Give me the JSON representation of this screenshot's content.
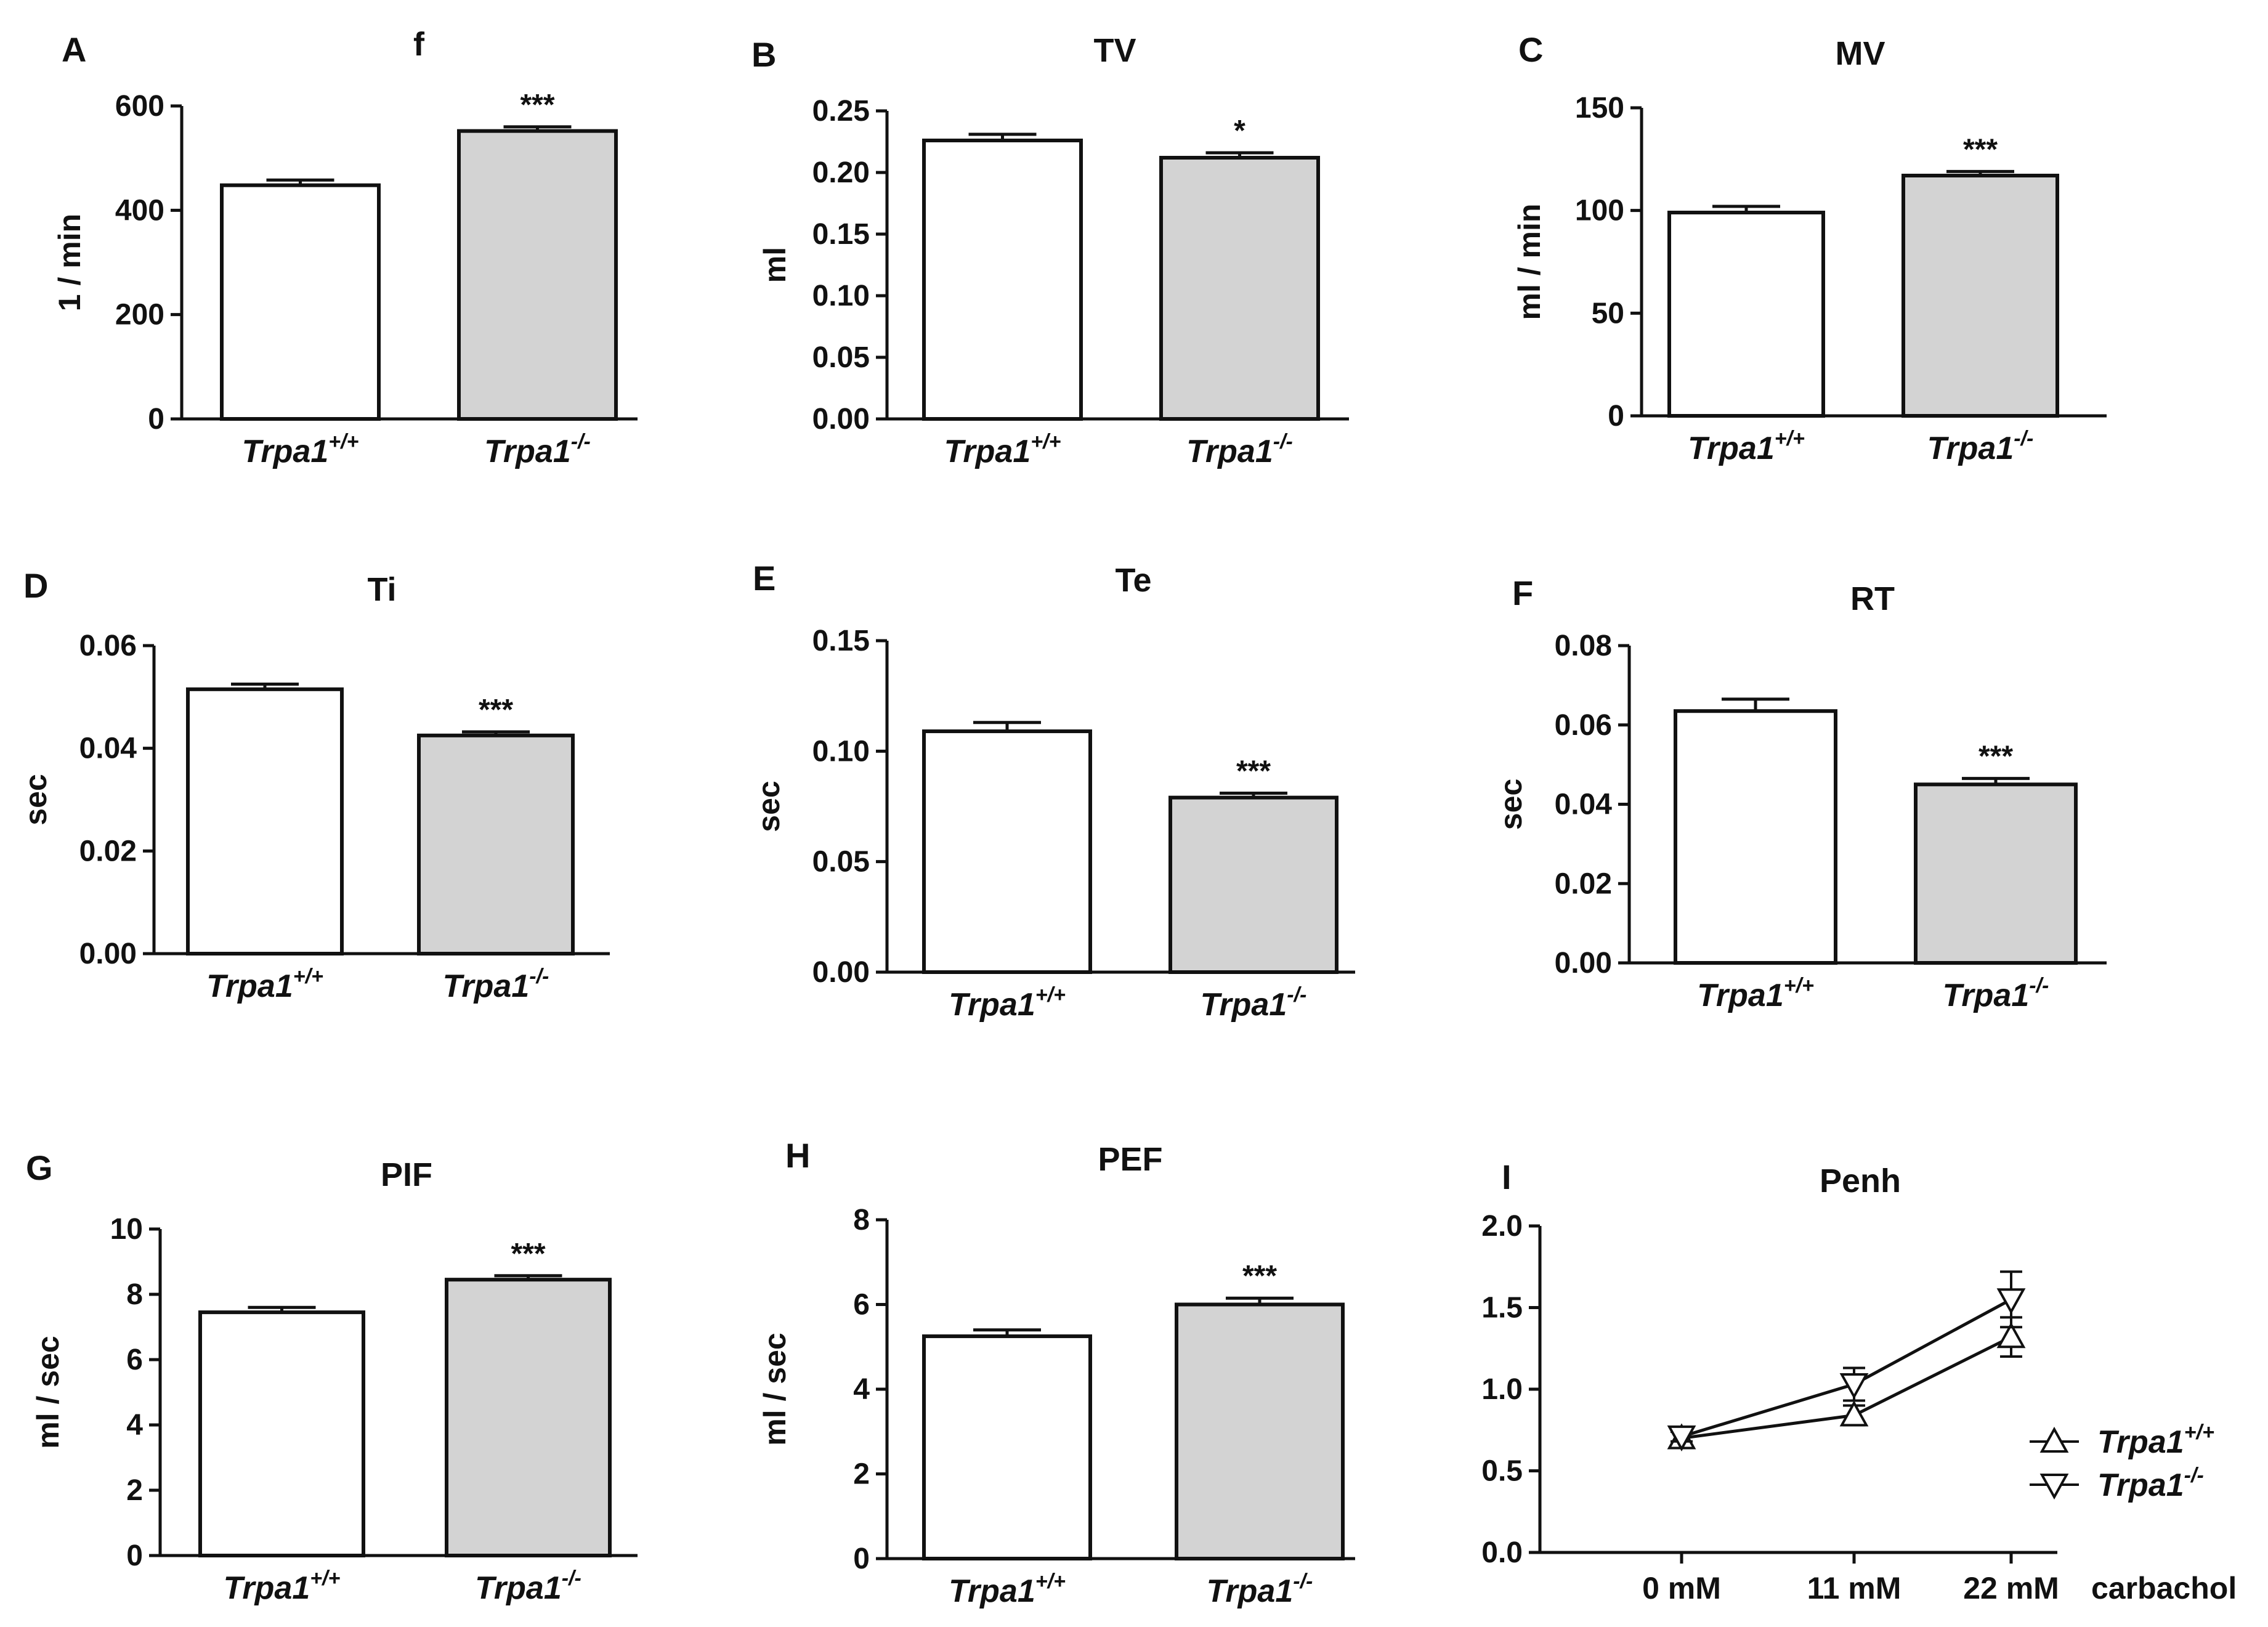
{
  "colors": {
    "axis": "#111111",
    "bar_wildtype": "#ffffff",
    "bar_knockout": "#d3d3d3"
  },
  "groups": {
    "base": "Trpa1",
    "wildtype_sup": "+/+",
    "knockout_sup": "-/-"
  },
  "chart_data": [
    {
      "panel": "A",
      "type": "bar",
      "title": "f",
      "ylabel": "1 / min",
      "ylim": [
        0,
        600
      ],
      "yticks": [
        0,
        200,
        400,
        600
      ],
      "ytick_labels": [
        "0",
        "200",
        "400",
        "600"
      ],
      "categories": [
        "Trpa1+/+",
        "Trpa1-/-"
      ],
      "values": [
        448,
        552
      ],
      "errors": [
        10,
        8
      ],
      "significance": [
        "",
        "***"
      ]
    },
    {
      "panel": "B",
      "type": "bar",
      "title": "TV",
      "ylabel": "ml",
      "ylim": [
        0,
        0.25
      ],
      "yticks": [
        0,
        0.05,
        0.1,
        0.15,
        0.2,
        0.25
      ],
      "ytick_labels": [
        "0.00",
        "0.05",
        "0.10",
        "0.15",
        "0.20",
        "0.25"
      ],
      "categories": [
        "Trpa1+/+",
        "Trpa1-/-"
      ],
      "values": [
        0.226,
        0.212
      ],
      "errors": [
        0.005,
        0.004
      ],
      "significance": [
        "",
        "*"
      ]
    },
    {
      "panel": "C",
      "type": "bar",
      "title": "MV",
      "ylabel": "ml / min",
      "ylim": [
        0,
        150
      ],
      "yticks": [
        0,
        50,
        100,
        150
      ],
      "ytick_labels": [
        "0",
        "50",
        "100",
        "150"
      ],
      "categories": [
        "Trpa1+/+",
        "Trpa1-/-"
      ],
      "values": [
        99,
        117
      ],
      "errors": [
        3,
        2
      ],
      "significance": [
        "",
        "***"
      ]
    },
    {
      "panel": "D",
      "type": "bar",
      "title": "Ti",
      "ylabel": "sec",
      "ylim": [
        0,
        0.06
      ],
      "yticks": [
        0,
        0.02,
        0.04,
        0.06
      ],
      "ytick_labels": [
        "0.00",
        "0.02",
        "0.04",
        "0.06"
      ],
      "categories": [
        "Trpa1+/+",
        "Trpa1-/-"
      ],
      "values": [
        0.0515,
        0.0425
      ],
      "errors": [
        0.001,
        0.0007
      ],
      "significance": [
        "",
        "***"
      ]
    },
    {
      "panel": "E",
      "type": "bar",
      "title": "Te",
      "ylabel": "sec",
      "ylim": [
        0,
        0.15
      ],
      "yticks": [
        0,
        0.05,
        0.1,
        0.15
      ],
      "ytick_labels": [
        "0.00",
        "0.05",
        "0.10",
        "0.15"
      ],
      "categories": [
        "Trpa1+/+",
        "Trpa1-/-"
      ],
      "values": [
        0.109,
        0.079
      ],
      "errors": [
        0.004,
        0.002
      ],
      "significance": [
        "",
        "***"
      ]
    },
    {
      "panel": "F",
      "type": "bar",
      "title": "RT",
      "ylabel": "sec",
      "ylim": [
        0,
        0.08
      ],
      "yticks": [
        0,
        0.02,
        0.04,
        0.06,
        0.08
      ],
      "ytick_labels": [
        "0.00",
        "0.02",
        "0.04",
        "0.06",
        "0.08"
      ],
      "categories": [
        "Trpa1+/+",
        "Trpa1-/-"
      ],
      "values": [
        0.0635,
        0.045
      ],
      "errors": [
        0.003,
        0.0015
      ],
      "significance": [
        "",
        "***"
      ]
    },
    {
      "panel": "G",
      "type": "bar",
      "title": "PIF",
      "ylabel": "ml / sec",
      "ylim": [
        0,
        10
      ],
      "yticks": [
        0,
        2,
        4,
        6,
        8,
        10
      ],
      "ytick_labels": [
        "0",
        "2",
        "4",
        "6",
        "8",
        "10"
      ],
      "categories": [
        "Trpa1+/+",
        "Trpa1-/-"
      ],
      "values": [
        7.45,
        8.45
      ],
      "errors": [
        0.15,
        0.12
      ],
      "significance": [
        "",
        "***"
      ]
    },
    {
      "panel": "H",
      "type": "bar",
      "title": "PEF",
      "ylabel": "ml / sec",
      "ylim": [
        0,
        8
      ],
      "yticks": [
        0,
        2,
        4,
        6,
        8
      ],
      "ytick_labels": [
        "0",
        "2",
        "4",
        "6",
        "8"
      ],
      "categories": [
        "Trpa1+/+",
        "Trpa1-/-"
      ],
      "values": [
        5.25,
        6.0
      ],
      "errors": [
        0.15,
        0.15
      ],
      "significance": [
        "",
        "***"
      ]
    },
    {
      "panel": "I",
      "type": "line",
      "title": "Penh",
      "ylim": [
        0,
        2.0
      ],
      "yticks": [
        0,
        0.5,
        1.0,
        1.5,
        2.0
      ],
      "ytick_labels": [
        "0.0",
        "0.5",
        "1.0",
        "1.5",
        "2.0"
      ],
      "categories": [
        "0 mM",
        "11 mM",
        "22 mM"
      ],
      "xlabel": "carbachol",
      "legend_position": "right",
      "series": [
        {
          "name": "Trpa1+/+",
          "marker": "triangle-up",
          "values": [
            0.7,
            0.84,
            1.32
          ],
          "errors": [
            0.04,
            0.06,
            0.12
          ]
        },
        {
          "name": "Trpa1-/-",
          "marker": "triangle-down",
          "values": [
            0.71,
            1.03,
            1.55
          ],
          "errors": [
            0.03,
            0.1,
            0.17
          ]
        }
      ]
    }
  ]
}
